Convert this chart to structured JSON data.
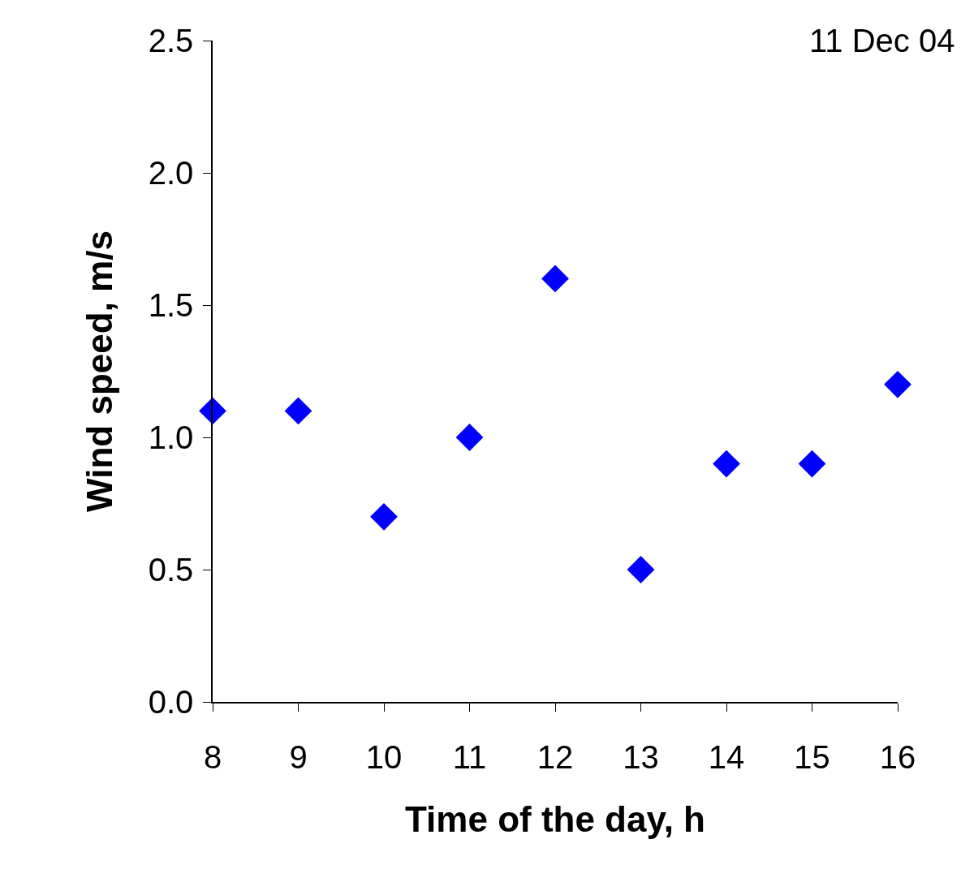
{
  "chart_data": {
    "type": "scatter",
    "xlabel": "Time of the day, h",
    "ylabel": "Wind speed, m/s",
    "annotations": [
      "11 Dec 04"
    ],
    "x": [
      8,
      9,
      10,
      11,
      12,
      13,
      14,
      15,
      16
    ],
    "series": [
      {
        "color": "#0000ff",
        "values": [
          1.1,
          1.1,
          0.7,
          1.0,
          1.6,
          0.5,
          0.9,
          0.9,
          1.2
        ]
      }
    ],
    "xlim": [
      8,
      16
    ],
    "xticks": [
      8,
      9,
      10,
      11,
      12,
      13,
      14,
      15,
      16
    ],
    "ylim": [
      0,
      2.5
    ],
    "yticks": [
      {
        "value": 0,
        "label": "0.0"
      },
      {
        "value": 0.5,
        "label": "0.5"
      },
      {
        "value": 1,
        "label": "1.0"
      },
      {
        "value": 1.5,
        "label": "1.5"
      },
      {
        "value": 2,
        "label": "2.0"
      },
      {
        "value": 2.5,
        "label": "2.5"
      }
    ],
    "grid": false,
    "marker": "diamond"
  }
}
